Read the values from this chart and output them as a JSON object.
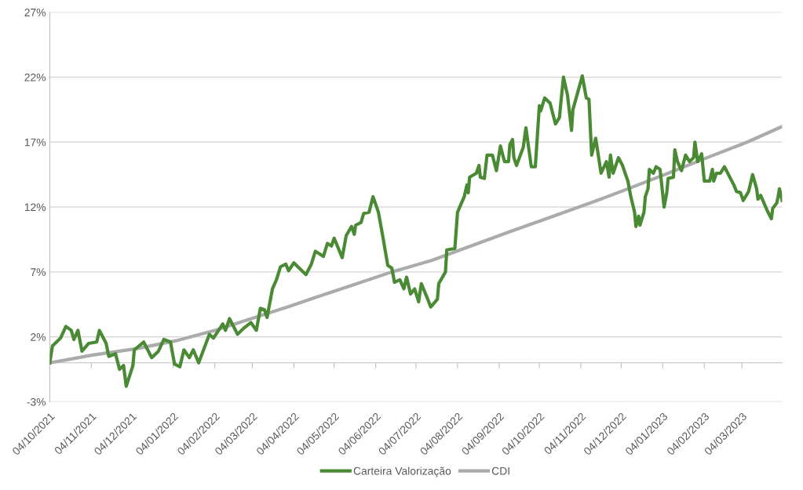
{
  "chart_data": {
    "type": "line",
    "xlim": [
      "2021-10-04",
      "2023-04-03"
    ],
    "xticks": [
      {
        "value": "2021-10-04",
        "label": "04/10/2021"
      },
      {
        "value": "2021-11-04",
        "label": "04/11/2021"
      },
      {
        "value": "2021-12-04",
        "label": "04/12/2021"
      },
      {
        "value": "2022-01-04",
        "label": "04/01/2022"
      },
      {
        "value": "2022-02-04",
        "label": "04/02/2022"
      },
      {
        "value": "2022-03-04",
        "label": "04/03/2022"
      },
      {
        "value": "2022-04-04",
        "label": "04/04/2022"
      },
      {
        "value": "2022-05-04",
        "label": "04/05/2022"
      },
      {
        "value": "2022-06-04",
        "label": "04/06/2022"
      },
      {
        "value": "2022-07-04",
        "label": "04/07/2022"
      },
      {
        "value": "2022-08-04",
        "label": "04/08/2022"
      },
      {
        "value": "2022-09-04",
        "label": "04/09/2022"
      },
      {
        "value": "2022-10-04",
        "label": "04/10/2022"
      },
      {
        "value": "2022-11-04",
        "label": "04/11/2022"
      },
      {
        "value": "2022-12-04",
        "label": "04/12/2022"
      },
      {
        "value": "2023-01-04",
        "label": "04/01/2023"
      },
      {
        "value": "2023-02-04",
        "label": "04/02/2023"
      },
      {
        "value": "2023-03-04",
        "label": "04/03/2023"
      }
    ],
    "ylim": [
      -3,
      27
    ],
    "yticks": [
      {
        "value": -3,
        "label": "-3%"
      },
      {
        "value": 2,
        "label": "2%"
      },
      {
        "value": 7,
        "label": "7%"
      },
      {
        "value": 12,
        "label": "12%"
      },
      {
        "value": 17,
        "label": "17%"
      },
      {
        "value": 22,
        "label": "22%"
      },
      {
        "value": 27,
        "label": "27%"
      }
    ],
    "grid": "y",
    "legend": "bottom",
    "marker": "none",
    "line_style": "solid",
    "series": [
      {
        "name": "Carteira Valorização",
        "color": "#4a8a35",
        "x": [
          "2021-10-04",
          "2021-10-06",
          "2021-10-12",
          "2021-10-16",
          "2021-10-20",
          "2021-10-22",
          "2021-10-25",
          "2021-10-28",
          "2021-11-02",
          "2021-11-08",
          "2021-11-10",
          "2021-11-15",
          "2021-11-17",
          "2021-11-22",
          "2021-11-25",
          "2021-11-28",
          "2021-11-30",
          "2021-12-05",
          "2021-12-06",
          "2021-12-13",
          "2021-12-19",
          "2021-12-24",
          "2021-12-28",
          "2022-01-02",
          "2022-01-05",
          "2022-01-09",
          "2022-01-12",
          "2022-01-16",
          "2022-01-19",
          "2022-01-23",
          "2022-01-31",
          "2022-02-03",
          "2022-02-10",
          "2022-02-12",
          "2022-02-15",
          "2022-02-21",
          "2022-02-26",
          "2022-03-03",
          "2022-03-07",
          "2022-03-10",
          "2022-03-13",
          "2022-03-15",
          "2022-03-19",
          "2022-03-22",
          "2022-03-25",
          "2022-03-29",
          "2022-03-31",
          "2022-04-04",
          "2022-04-08",
          "2022-04-13",
          "2022-04-17",
          "2022-04-20",
          "2022-04-26",
          "2022-04-29",
          "2022-05-02",
          "2022-05-04",
          "2022-05-10",
          "2022-05-13",
          "2022-05-17",
          "2022-05-19",
          "2022-05-20",
          "2022-05-24",
          "2022-05-26",
          "2022-05-30",
          "2022-06-02",
          "2022-06-06",
          "2022-06-09",
          "2022-06-13",
          "2022-06-16",
          "2022-06-18",
          "2022-06-22",
          "2022-06-25",
          "2022-06-27",
          "2022-06-30",
          "2022-07-03",
          "2022-07-06",
          "2022-07-08",
          "2022-07-12",
          "2022-07-15",
          "2022-07-20",
          "2022-07-21",
          "2022-07-26",
          "2022-07-27",
          "2022-08-02",
          "2022-08-04",
          "2022-08-09",
          "2022-08-11",
          "2022-08-12",
          "2022-08-13",
          "2022-08-18",
          "2022-08-20",
          "2022-08-21",
          "2022-08-24",
          "2022-08-26",
          "2022-08-30",
          "2022-09-02",
          "2022-09-05",
          "2022-09-08",
          "2022-09-11",
          "2022-09-12",
          "2022-09-14",
          "2022-09-15",
          "2022-09-17",
          "2022-09-22",
          "2022-09-24",
          "2022-09-28",
          "2022-10-01",
          "2022-10-04",
          "2022-10-05",
          "2022-10-08",
          "2022-10-12",
          "2022-10-14",
          "2022-10-16",
          "2022-10-19",
          "2022-10-20",
          "2022-10-22",
          "2022-10-25",
          "2022-10-28",
          "2022-10-29",
          "2022-11-01",
          "2022-11-05",
          "2022-11-08",
          "2022-11-10",
          "2022-11-12",
          "2022-11-15",
          "2022-11-19",
          "2022-11-23",
          "2022-11-25",
          "2022-11-26",
          "2022-11-28",
          "2022-12-02",
          "2022-12-05",
          "2022-12-08",
          "2022-12-09",
          "2022-12-11",
          "2022-12-14",
          "2022-12-15",
          "2022-12-17",
          "2022-12-18",
          "2022-12-21",
          "2022-12-22",
          "2022-12-24",
          "2022-12-25",
          "2022-12-28",
          "2022-12-30",
          "2023-01-02",
          "2023-01-05",
          "2023-01-07",
          "2023-01-08",
          "2023-01-12",
          "2023-01-13",
          "2023-01-15",
          "2023-01-18",
          "2023-01-21",
          "2023-01-24",
          "2023-01-27",
          "2023-01-28",
          "2023-01-30",
          "2023-02-02",
          "2023-02-04",
          "2023-02-08",
          "2023-02-10",
          "2023-02-11",
          "2023-02-13",
          "2023-02-16",
          "2023-02-19",
          "2023-02-26",
          "2023-02-28",
          "2023-03-03",
          "2023-03-05",
          "2023-03-09",
          "2023-03-12",
          "2023-03-15",
          "2023-03-16",
          "2023-03-18",
          "2023-03-23",
          "2023-03-26",
          "2023-03-27",
          "2023-03-30",
          "2023-03-31",
          "2023-04-01",
          "2023-04-03"
        ],
        "values": [
          0.0,
          1.3,
          1.9,
          2.8,
          2.5,
          1.8,
          2.5,
          0.9,
          1.5,
          1.6,
          2.5,
          1.5,
          0.5,
          0.7,
          -0.5,
          -0.2,
          -1.8,
          -0.2,
          1.0,
          1.6,
          0.4,
          0.9,
          1.8,
          1.6,
          -0.1,
          -0.3,
          1.0,
          0.4,
          1.0,
          0.0,
          2.2,
          1.9,
          3.0,
          2.5,
          3.4,
          2.2,
          2.7,
          3.1,
          2.5,
          4.2,
          4.1,
          3.5,
          5.7,
          6.4,
          7.4,
          7.6,
          7.1,
          7.7,
          7.3,
          6.8,
          7.6,
          8.6,
          8.2,
          9.2,
          9.0,
          9.6,
          8.1,
          9.8,
          10.5,
          9.9,
          10.6,
          10.8,
          11.5,
          11.6,
          12.8,
          11.6,
          9.9,
          7.5,
          7.3,
          6.2,
          6.4,
          5.7,
          6.6,
          5.3,
          5.7,
          4.7,
          6.1,
          5.1,
          4.3,
          4.9,
          6.1,
          7.0,
          8.7,
          8.8,
          11.6,
          12.8,
          13.7,
          13.1,
          14.3,
          14.6,
          15.2,
          14.3,
          14.2,
          16.0,
          16.0,
          14.8,
          16.7,
          15.5,
          15.5,
          16.8,
          17.2,
          15.8,
          15.2,
          16.6,
          18.1,
          15.1,
          15.1,
          19.8,
          19.4,
          20.4,
          20.0,
          19.2,
          18.4,
          18.9,
          20.0,
          22.0,
          20.6,
          17.9,
          19.5,
          20.6,
          22.1,
          20.4,
          20.3,
          16.0,
          17.3,
          14.6,
          15.5,
          14.3,
          16.0,
          14.6,
          15.8,
          15.2,
          14.3,
          14.0,
          12.9,
          11.6,
          10.5,
          11.3,
          10.6,
          11.6,
          12.8,
          13.4,
          14.9,
          14.6,
          15.1,
          14.9,
          12.0,
          13.1,
          14.2,
          14.3,
          16.4,
          15.5,
          14.8,
          16.0,
          15.5,
          15.8,
          17.0,
          15.5,
          16.1,
          14.0,
          14.0,
          14.9,
          14.0,
          14.6,
          14.6,
          15.1,
          13.7,
          13.2,
          13.1,
          12.5,
          13.2,
          14.5,
          13.4,
          12.6,
          12.9,
          11.7,
          11.1,
          11.9,
          12.3,
          12.8,
          13.4,
          12.5
        ]
      },
      {
        "name": "CDI",
        "color": "#ababab",
        "x": [
          "2021-10-04",
          "2021-11-05",
          "2021-12-08",
          "2022-01-06",
          "2022-02-04",
          "2022-03-09",
          "2022-04-02",
          "2022-04-19",
          "2022-05-18",
          "2022-06-16",
          "2022-07-16",
          "2022-08-14",
          "2022-09-12",
          "2022-10-12",
          "2022-11-16",
          "2022-12-09",
          "2023-01-08",
          "2023-02-06",
          "2023-03-08",
          "2023-04-03"
        ],
        "values": [
          0.0,
          0.6,
          1.1,
          1.7,
          2.5,
          3.6,
          4.4,
          5.0,
          6.0,
          7.0,
          7.9,
          9.0,
          10.1,
          11.2,
          12.5,
          13.4,
          14.6,
          15.8,
          17.0,
          18.2
        ]
      }
    ]
  }
}
